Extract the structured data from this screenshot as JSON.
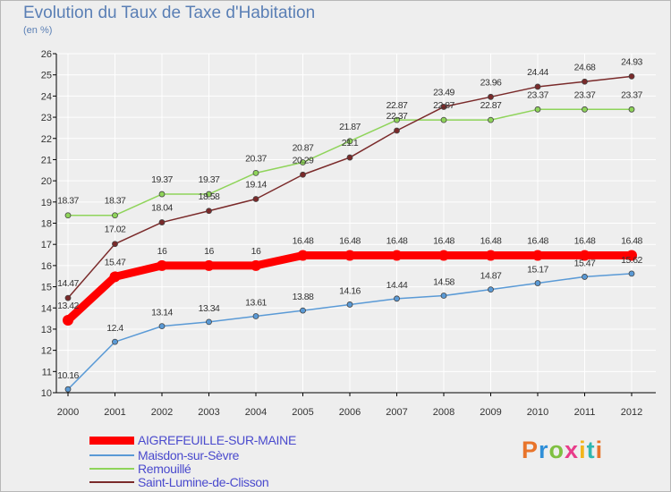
{
  "header": {
    "title": "Evolution du Taux de Taxe d'Habitation",
    "subtitle": "(en %)"
  },
  "brand": {
    "text": "Proxiti"
  },
  "colors": {
    "background": "#eeeeee",
    "grid": "#ffffff",
    "axis": "#000000",
    "title": "#5a7fb5",
    "legend_text": "#4a4acd",
    "label": "#333333"
  },
  "chart_data": {
    "type": "line",
    "title": "Evolution du Taux de Taxe d'Habitation",
    "subtitle": "(en %)",
    "x": [
      "2000",
      "2001",
      "2002",
      "2003",
      "2004",
      "2005",
      "2006",
      "2007",
      "2008",
      "2009",
      "2010",
      "2011",
      "2012"
    ],
    "ylim": [
      10,
      26
    ],
    "yticks": [
      10,
      11,
      12,
      13,
      14,
      15,
      16,
      17,
      18,
      19,
      20,
      21,
      22,
      23,
      24,
      25,
      26
    ],
    "grid": true,
    "legend_position": "bottom-left",
    "series": [
      {
        "name": "AIGREFEUILLE-SUR-MAINE",
        "color": "#ff0000",
        "values": [
          13.42,
          15.47,
          16,
          16,
          16,
          16.48,
          16.48,
          16.48,
          16.48,
          16.48,
          16.48,
          16.48,
          16.48
        ],
        "labels": [
          "13.42",
          "15.47",
          "16",
          "16",
          "16",
          "16.48",
          "16.48",
          "16.48",
          "16.48",
          "16.48",
          "16.48",
          "16.48",
          "16.48"
        ]
      },
      {
        "name": "Maisdon-sur-Sèvre",
        "color": "#5a9ad6",
        "values": [
          10.16,
          12.4,
          13.14,
          13.34,
          13.61,
          13.88,
          14.16,
          14.44,
          14.58,
          14.87,
          15.17,
          15.47,
          15.62
        ],
        "labels": [
          "10.16",
          "12.4",
          "13.14",
          "13.34",
          "13.61",
          "13.88",
          "14.16",
          "14.44",
          "14.58",
          "14.87",
          "15.17",
          "15.47",
          "15.62"
        ]
      },
      {
        "name": "Remouillé",
        "color": "#8fd45a",
        "values": [
          18.37,
          18.37,
          19.37,
          19.37,
          20.37,
          20.87,
          21.87,
          22.87,
          22.87,
          22.87,
          23.37,
          23.37,
          23.37
        ],
        "labels": [
          "18.37",
          "18.37",
          "19.37",
          "19.37",
          "20.37",
          "20.87",
          "21.87",
          "22.87",
          "22.87",
          "22.87",
          "23.37",
          "23.37",
          "23.37"
        ]
      },
      {
        "name": "Saint-Lumine-de-Clisson",
        "color": "#7a2a2a",
        "values": [
          14.47,
          17.02,
          18.04,
          18.58,
          19.14,
          20.29,
          21.1,
          22.37,
          23.49,
          23.96,
          24.44,
          24.68,
          24.93
        ],
        "labels": [
          "14.47",
          "17.02",
          "18.04",
          "18.58",
          "19.14",
          "20.29",
          "21.1",
          "22.37",
          "23.49",
          "23.96",
          "24.44",
          "24.68",
          "24.93"
        ]
      }
    ]
  }
}
